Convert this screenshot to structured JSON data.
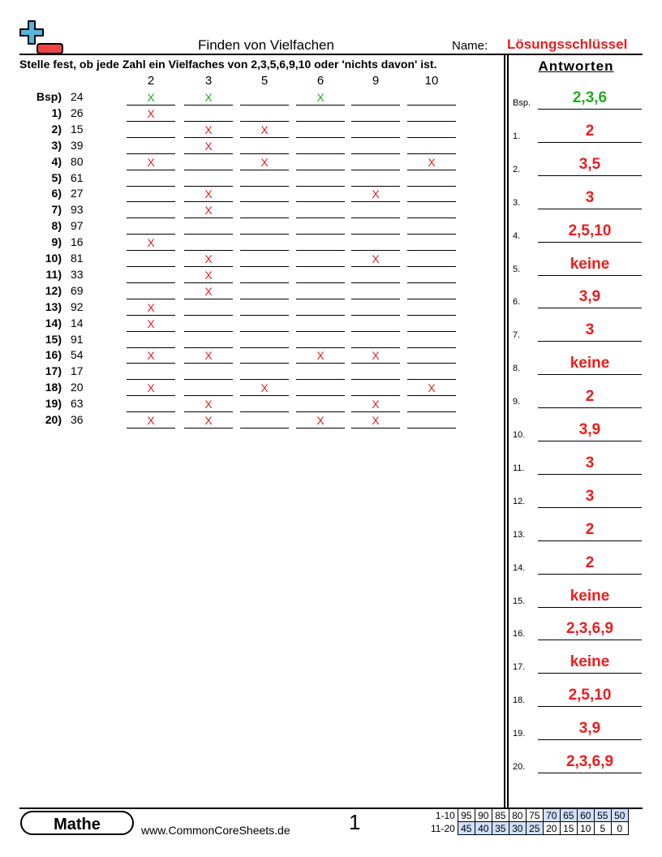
{
  "header": {
    "title": "Finden von Vielfachen",
    "name_label": "Name:",
    "name_value": "Lösungsschlüssel",
    "logo_icon": "plus-minus-logo-icon"
  },
  "instructions": "Stelle fest, ob jede Zahl ein Vielfaches von 2,3,5,6,9,10 oder 'nichts davon' ist.",
  "columns": [
    "2",
    "3",
    "5",
    "6",
    "9",
    "10"
  ],
  "mark_symbol": "X",
  "colors": {
    "example": "#22aa22",
    "answer": "#ee1c1c",
    "score_highlight": "#cfe0fb"
  },
  "rows": [
    {
      "label": "Bsp)",
      "number": "24",
      "marks": [
        1,
        1,
        0,
        1,
        0,
        0
      ]
    },
    {
      "label": "1)",
      "number": "26",
      "marks": [
        1,
        0,
        0,
        0,
        0,
        0
      ]
    },
    {
      "label": "2)",
      "number": "15",
      "marks": [
        0,
        1,
        1,
        0,
        0,
        0
      ]
    },
    {
      "label": "3)",
      "number": "39",
      "marks": [
        0,
        1,
        0,
        0,
        0,
        0
      ]
    },
    {
      "label": "4)",
      "number": "80",
      "marks": [
        1,
        0,
        1,
        0,
        0,
        1
      ]
    },
    {
      "label": "5)",
      "number": "61",
      "marks": [
        0,
        0,
        0,
        0,
        0,
        0
      ]
    },
    {
      "label": "6)",
      "number": "27",
      "marks": [
        0,
        1,
        0,
        0,
        1,
        0
      ]
    },
    {
      "label": "7)",
      "number": "93",
      "marks": [
        0,
        1,
        0,
        0,
        0,
        0
      ]
    },
    {
      "label": "8)",
      "number": "97",
      "marks": [
        0,
        0,
        0,
        0,
        0,
        0
      ]
    },
    {
      "label": "9)",
      "number": "16",
      "marks": [
        1,
        0,
        0,
        0,
        0,
        0
      ]
    },
    {
      "label": "10)",
      "number": "81",
      "marks": [
        0,
        1,
        0,
        0,
        1,
        0
      ]
    },
    {
      "label": "11)",
      "number": "33",
      "marks": [
        0,
        1,
        0,
        0,
        0,
        0
      ]
    },
    {
      "label": "12)",
      "number": "69",
      "marks": [
        0,
        1,
        0,
        0,
        0,
        0
      ]
    },
    {
      "label": "13)",
      "number": "92",
      "marks": [
        1,
        0,
        0,
        0,
        0,
        0
      ]
    },
    {
      "label": "14)",
      "number": "14",
      "marks": [
        1,
        0,
        0,
        0,
        0,
        0
      ]
    },
    {
      "label": "15)",
      "number": "91",
      "marks": [
        0,
        0,
        0,
        0,
        0,
        0
      ]
    },
    {
      "label": "16)",
      "number": "54",
      "marks": [
        1,
        1,
        0,
        1,
        1,
        0
      ]
    },
    {
      "label": "17)",
      "number": "17",
      "marks": [
        0,
        0,
        0,
        0,
        0,
        0
      ]
    },
    {
      "label": "18)",
      "number": "20",
      "marks": [
        1,
        0,
        1,
        0,
        0,
        1
      ]
    },
    {
      "label": "19)",
      "number": "63",
      "marks": [
        0,
        1,
        0,
        0,
        1,
        0
      ]
    },
    {
      "label": "20)",
      "number": "36",
      "marks": [
        1,
        1,
        0,
        1,
        1,
        0
      ]
    }
  ],
  "answers": {
    "heading": "Antworten",
    "items": [
      {
        "label": "Bsp.",
        "value": "2,3,6"
      },
      {
        "label": "1.",
        "value": "2"
      },
      {
        "label": "2.",
        "value": "3,5"
      },
      {
        "label": "3.",
        "value": "3"
      },
      {
        "label": "4.",
        "value": "2,5,10"
      },
      {
        "label": "5.",
        "value": "keine"
      },
      {
        "label": "6.",
        "value": "3,9"
      },
      {
        "label": "7.",
        "value": "3"
      },
      {
        "label": "8.",
        "value": "keine"
      },
      {
        "label": "9.",
        "value": "2"
      },
      {
        "label": "10.",
        "value": "3,9"
      },
      {
        "label": "11.",
        "value": "3"
      },
      {
        "label": "12.",
        "value": "3"
      },
      {
        "label": "13.",
        "value": "2"
      },
      {
        "label": "14.",
        "value": "2"
      },
      {
        "label": "15.",
        "value": "keine"
      },
      {
        "label": "16.",
        "value": "2,3,6,9"
      },
      {
        "label": "17.",
        "value": "keine"
      },
      {
        "label": "18.",
        "value": "2,5,10"
      },
      {
        "label": "19.",
        "value": "3,9"
      },
      {
        "label": "20.",
        "value": "2,3,6,9"
      }
    ]
  },
  "footer": {
    "subject": "Mathe",
    "website": "www.CommonCoreSheets.de",
    "page": "1",
    "score_rows": [
      {
        "label": "1-10",
        "values": [
          "95",
          "90",
          "85",
          "80",
          "75",
          "70",
          "65",
          "60",
          "55",
          "50"
        ],
        "highlight": [
          0,
          0,
          0,
          0,
          0,
          1,
          1,
          1,
          1,
          1
        ]
      },
      {
        "label": "11-20",
        "values": [
          "45",
          "40",
          "35",
          "30",
          "25",
          "20",
          "15",
          "10",
          "5",
          "0"
        ],
        "highlight": [
          1,
          1,
          1,
          1,
          1,
          0,
          0,
          0,
          0,
          0
        ]
      }
    ]
  }
}
